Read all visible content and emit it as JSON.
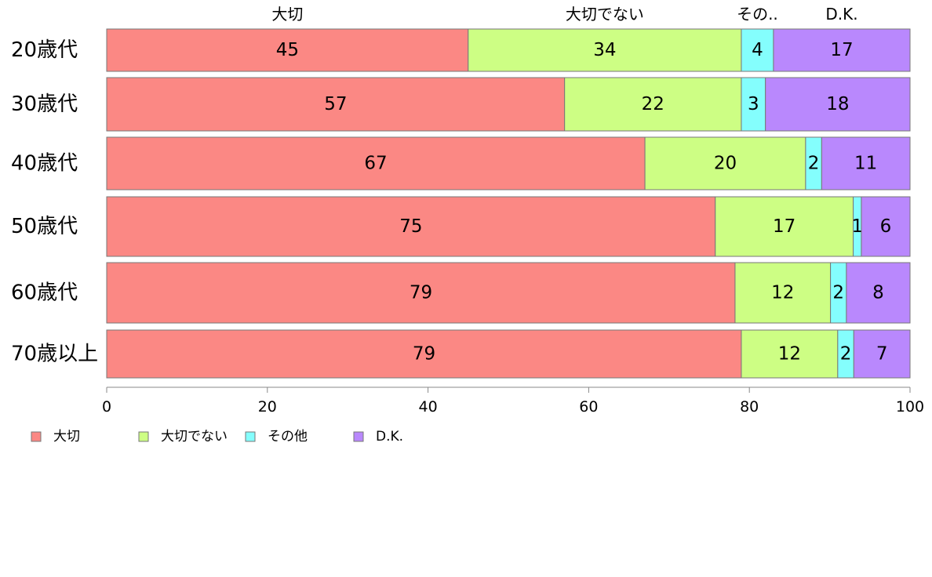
{
  "chart_data": {
    "type": "bar",
    "orientation": "horizontal",
    "stacked": true,
    "categories": [
      "20歳代",
      "30歳代",
      "40歳代",
      "50歳代",
      "60歳代",
      "70歳以上"
    ],
    "series": [
      {
        "name": "大切",
        "top_label": "大切",
        "color": "#fb8884",
        "values": [
          45,
          57,
          67,
          75,
          79,
          79
        ]
      },
      {
        "name": "大切でない",
        "top_label": "大切でない",
        "color": "#cdfe84",
        "values": [
          34,
          22,
          20,
          17,
          12,
          12
        ]
      },
      {
        "name": "その他",
        "top_label": "その..",
        "color": "#84fefd",
        "values": [
          4,
          3,
          2,
          1,
          2,
          2
        ]
      },
      {
        "name": "D.K.",
        "top_label": "D.K.",
        "color": "#b988fd",
        "values": [
          17,
          18,
          11,
          6,
          8,
          7
        ]
      }
    ],
    "xlim": [
      0,
      100
    ],
    "xticks": [
      0,
      20,
      40,
      60,
      80,
      100
    ],
    "grid": false,
    "legend_position": "bottom-left"
  }
}
